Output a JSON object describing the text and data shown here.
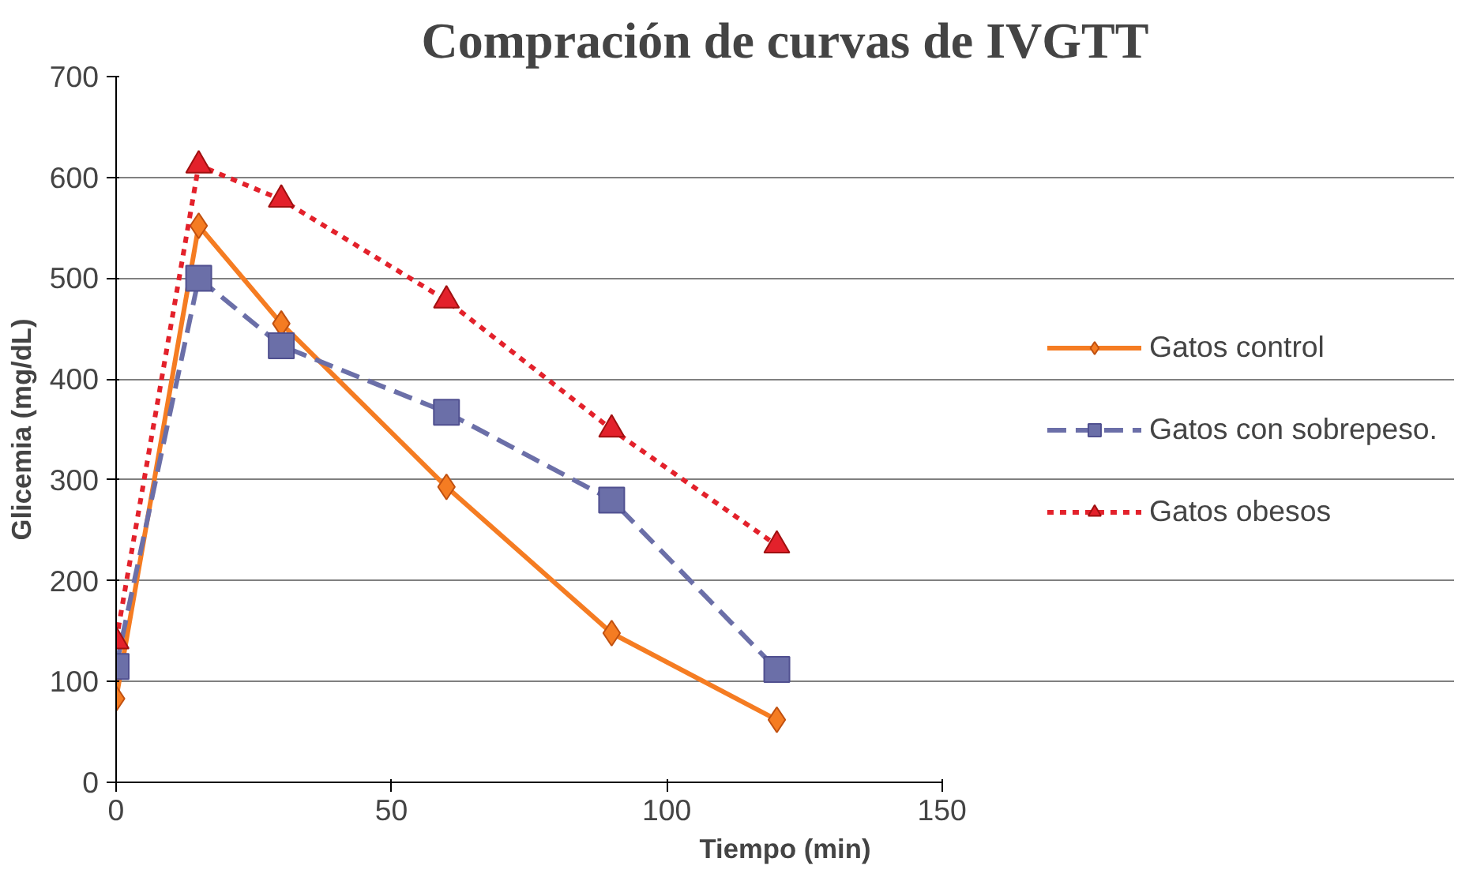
{
  "chart_data": {
    "type": "line",
    "title": "Compración de curvas de IVGTT",
    "xlabel": "Tiempo (min)",
    "ylabel": "Glicemia (mg/dL)",
    "x": [
      0,
      15,
      30,
      60,
      90,
      120
    ],
    "xlim": [
      0,
      150
    ],
    "xticks": [
      0,
      50,
      100,
      150
    ],
    "ylim": [
      0,
      700
    ],
    "yticks": [
      0,
      100,
      200,
      300,
      400,
      500,
      600,
      700
    ],
    "grid": "y",
    "legend": "right",
    "series": [
      {
        "name": "Gatos control",
        "color": "#f57c22",
        "values": [
          83,
          552,
          455,
          293,
          148,
          62
        ],
        "marker": "diamond",
        "line_style": "solid"
      },
      {
        "name": "Gatos con sobrepeso.",
        "color": "#6b6fa8",
        "values": [
          115,
          500,
          433,
          367,
          280,
          112
        ],
        "marker": "square",
        "line_style": "dashed"
      },
      {
        "name": "Gatos obesos",
        "color": "#e3212b",
        "values": [
          140,
          612,
          578,
          478,
          350,
          235
        ],
        "marker": "triangle",
        "line_style": "dotted"
      }
    ]
  }
}
